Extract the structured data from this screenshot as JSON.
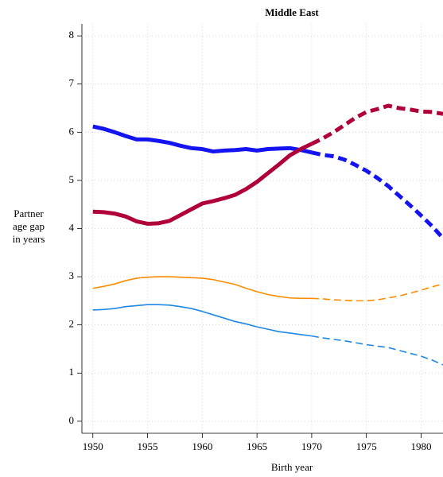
{
  "chart_data": {
    "type": "line",
    "title": "Middle East",
    "x_label": "Birth year",
    "y_label": [
      "Partner",
      "age gap",
      "in years"
    ],
    "x": [
      1950,
      1951,
      1952,
      1953,
      1954,
      1955,
      1956,
      1957,
      1958,
      1959,
      1960,
      1961,
      1962,
      1963,
      1964,
      1965,
      1966,
      1967,
      1968,
      1969,
      1970,
      1971,
      1972,
      1973,
      1974,
      1975,
      1976,
      1977,
      1978,
      1979,
      1980,
      1981,
      1982
    ],
    "series": [
      {
        "color": "#1414f0",
        "width": 5,
        "values": [
          6.12,
          6.07,
          6.0,
          5.92,
          5.85,
          5.85,
          5.82,
          5.78,
          5.72,
          5.67,
          5.65,
          5.6,
          5.62,
          5.63,
          5.65,
          5.62,
          5.65,
          5.66,
          5.67,
          5.63,
          5.58,
          5.53,
          5.5,
          5.43,
          5.32,
          5.2,
          5.05,
          4.88,
          4.68,
          4.48,
          4.27,
          4.05,
          3.8
        ]
      },
      {
        "color": "#b0003a",
        "width": 5,
        "values": [
          4.35,
          4.34,
          4.31,
          4.25,
          4.15,
          4.1,
          4.11,
          4.16,
          4.28,
          4.4,
          4.52,
          4.57,
          4.63,
          4.7,
          4.82,
          4.97,
          5.15,
          5.33,
          5.52,
          5.65,
          5.76,
          5.87,
          6.0,
          6.15,
          6.3,
          6.42,
          6.48,
          6.55,
          6.5,
          6.47,
          6.43,
          6.42,
          6.38
        ]
      },
      {
        "color": "#ff8c00",
        "width": 1.6,
        "values": [
          2.76,
          2.8,
          2.85,
          2.92,
          2.97,
          2.99,
          3.0,
          3.0,
          2.99,
          2.98,
          2.97,
          2.94,
          2.89,
          2.84,
          2.76,
          2.69,
          2.63,
          2.59,
          2.56,
          2.55,
          2.55,
          2.54,
          2.52,
          2.51,
          2.5,
          2.5,
          2.52,
          2.56,
          2.6,
          2.66,
          2.72,
          2.79,
          2.85
        ]
      },
      {
        "color": "#1e88e5",
        "width": 1.6,
        "values": [
          2.31,
          2.32,
          2.34,
          2.38,
          2.4,
          2.42,
          2.42,
          2.41,
          2.38,
          2.34,
          2.28,
          2.21,
          2.14,
          2.07,
          2.02,
          1.96,
          1.91,
          1.86,
          1.83,
          1.8,
          1.77,
          1.73,
          1.7,
          1.67,
          1.63,
          1.59,
          1.56,
          1.53,
          1.47,
          1.41,
          1.35,
          1.27,
          1.17
        ]
      }
    ],
    "dashed_from": 1970,
    "xlim": [
      1949,
      1982
    ],
    "xticks": [
      1950,
      1955,
      1960,
      1965,
      1970,
      1975,
      1980
    ],
    "ylim": [
      -0.25,
      8.25
    ],
    "yticks": [
      0,
      1,
      2,
      3,
      4,
      5,
      6,
      7,
      8
    ],
    "grid": true
  }
}
